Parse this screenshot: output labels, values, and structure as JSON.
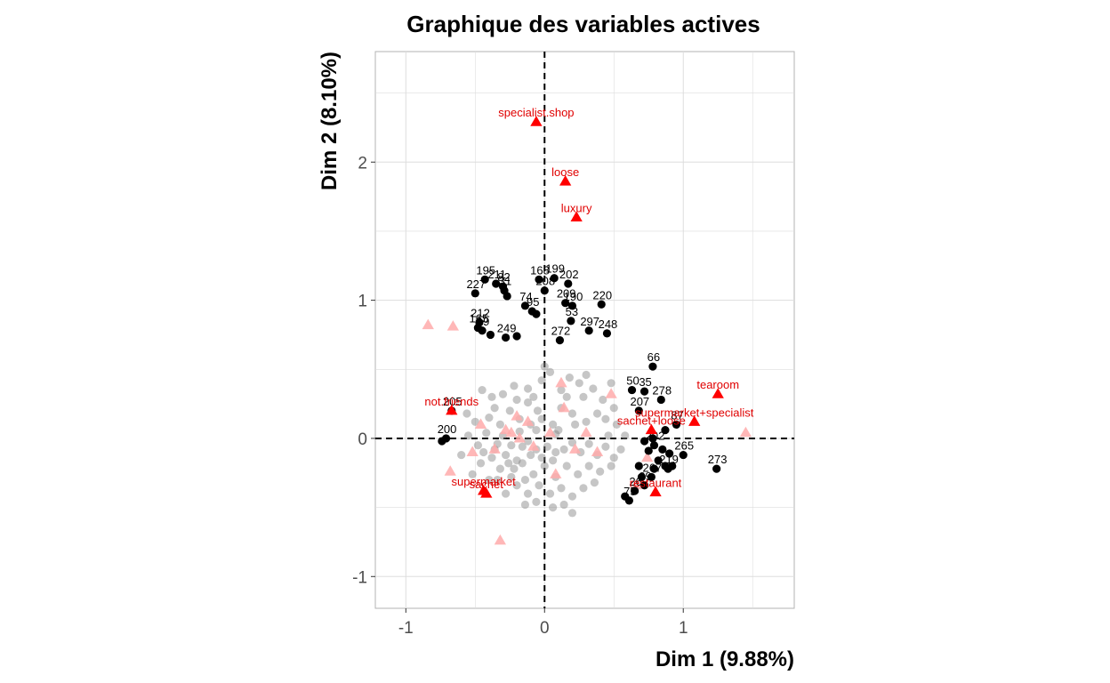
{
  "chart_data": {
    "type": "scatter",
    "title": "Graphique des variables actives",
    "xlabel": "Dim 1 (9.88%)",
    "ylabel": "Dim 2 (8.10%)",
    "xlim": [
      -1.22,
      1.8
    ],
    "ylim": [
      -1.23,
      2.8
    ],
    "x_ticks": [
      -1,
      0,
      1
    ],
    "y_ticks": [
      -1,
      0,
      1,
      2
    ],
    "x_tick_labels": [
      "-1",
      "0",
      "1"
    ],
    "y_tick_labels": [
      "-1",
      "0",
      "1",
      "2"
    ],
    "grid": true,
    "reference_lines": {
      "x": 0,
      "y": 0,
      "style": "dashed"
    },
    "colors": {
      "individuals_highlight": "#000000",
      "individuals_background": "#808080",
      "categories_highlight": "#ff0000",
      "categories_background": "#ffaaaa",
      "grid": "#dddddd",
      "panel_border": "#b3b3b3"
    },
    "series": [
      {
        "kind": "labeled-individuals",
        "marker": "circle",
        "points": [
          {
            "label": "195",
            "x": -0.43,
            "y": 1.15
          },
          {
            "label": "211",
            "x": -0.35,
            "y": 1.12
          },
          {
            "label": "82",
            "x": -0.3,
            "y": 1.1
          },
          {
            "label": "31",
            "x": -0.29,
            "y": 1.07
          },
          {
            "label": "227",
            "x": -0.5,
            "y": 1.05
          },
          {
            "label": "",
            "x": -0.27,
            "y": 1.03
          },
          {
            "label": "168",
            "x": -0.04,
            "y": 1.15
          },
          {
            "label": "199",
            "x": 0.07,
            "y": 1.16
          },
          {
            "label": "202",
            "x": 0.17,
            "y": 1.12
          },
          {
            "label": "208",
            "x": 0.0,
            "y": 1.07
          },
          {
            "label": "74",
            "x": -0.14,
            "y": 0.96
          },
          {
            "label": "95",
            "x": -0.09,
            "y": 0.92
          },
          {
            "label": "",
            "x": -0.06,
            "y": 0.9
          },
          {
            "label": "209",
            "x": 0.15,
            "y": 0.98
          },
          {
            "label": "190",
            "x": 0.2,
            "y": 0.96
          },
          {
            "label": "220",
            "x": 0.41,
            "y": 0.97
          },
          {
            "label": "53",
            "x": 0.19,
            "y": 0.85
          },
          {
            "label": "212",
            "x": -0.47,
            "y": 0.84
          },
          {
            "label": "165",
            "x": -0.48,
            "y": 0.8
          },
          {
            "label": "19",
            "x": -0.45,
            "y": 0.78
          },
          {
            "label": "",
            "x": -0.39,
            "y": 0.75
          },
          {
            "label": "249",
            "x": -0.28,
            "y": 0.73
          },
          {
            "label": "",
            "x": -0.2,
            "y": 0.74
          },
          {
            "label": "297",
            "x": 0.32,
            "y": 0.78
          },
          {
            "label": "248",
            "x": 0.45,
            "y": 0.76
          },
          {
            "label": "272",
            "x": 0.11,
            "y": 0.71
          },
          {
            "label": "66",
            "x": 0.78,
            "y": 0.52
          },
          {
            "label": "50",
            "x": 0.63,
            "y": 0.35
          },
          {
            "label": "35",
            "x": 0.72,
            "y": 0.34
          },
          {
            "label": "278",
            "x": 0.84,
            "y": 0.28
          },
          {
            "label": "207",
            "x": 0.68,
            "y": 0.2
          },
          {
            "label": "87",
            "x": 0.95,
            "y": 0.1
          },
          {
            "label": "",
            "x": 0.87,
            "y": 0.06
          },
          {
            "label": "205",
            "x": -0.67,
            "y": 0.2
          },
          {
            "label": "200",
            "x": -0.71,
            "y": 0.0
          },
          {
            "label": "",
            "x": -0.74,
            "y": -0.02
          },
          {
            "label": "",
            "x": 0.72,
            "y": -0.02
          },
          {
            "label": "",
            "x": 0.78,
            "y": 0.0
          },
          {
            "label": "202",
            "x": 0.79,
            "y": -0.05
          },
          {
            "label": "",
            "x": 0.85,
            "y": -0.08
          },
          {
            "label": "",
            "x": 0.9,
            "y": -0.11
          },
          {
            "label": "",
            "x": 0.75,
            "y": -0.09
          },
          {
            "label": "265",
            "x": 1.0,
            "y": -0.12
          },
          {
            "label": "",
            "x": 0.82,
            "y": -0.16
          },
          {
            "label": "",
            "x": 0.68,
            "y": -0.2
          },
          {
            "label": "",
            "x": 0.87,
            "y": -0.2
          },
          {
            "label": "",
            "x": 0.92,
            "y": -0.2
          },
          {
            "label": "219",
            "x": 0.89,
            "y": -0.22
          },
          {
            "label": "",
            "x": 0.79,
            "y": -0.22
          },
          {
            "label": "273",
            "x": 1.24,
            "y": -0.22
          },
          {
            "label": "",
            "x": 0.7,
            "y": -0.28
          },
          {
            "label": "267",
            "x": 0.77,
            "y": -0.28
          },
          {
            "label": "99",
            "x": 0.72,
            "y": -0.34
          },
          {
            "label": "26",
            "x": 0.65,
            "y": -0.38
          },
          {
            "label": "",
            "x": 0.58,
            "y": -0.42
          },
          {
            "label": "75",
            "x": 0.61,
            "y": -0.45
          }
        ]
      },
      {
        "kind": "individuals-background",
        "marker": "circle",
        "points": [
          {
            "x": -0.45,
            "y": 0.35
          },
          {
            "x": -0.38,
            "y": 0.3
          },
          {
            "x": -0.3,
            "y": 0.32
          },
          {
            "x": -0.22,
            "y": 0.38
          },
          {
            "x": -0.12,
            "y": 0.36
          },
          {
            "x": -0.02,
            "y": 0.42
          },
          {
            "x": 0.04,
            "y": 0.48
          },
          {
            "x": 0.12,
            "y": 0.35
          },
          {
            "x": 0.18,
            "y": 0.44
          },
          {
            "x": 0.25,
            "y": 0.4
          },
          {
            "x": 0.28,
            "y": 0.3
          },
          {
            "x": 0.35,
            "y": 0.36
          },
          {
            "x": 0.42,
            "y": 0.28
          },
          {
            "x": 0.48,
            "y": 0.4
          },
          {
            "x": 0.5,
            "y": 0.22
          },
          {
            "x": 0.38,
            "y": 0.18
          },
          {
            "x": 0.3,
            "y": 0.12
          },
          {
            "x": 0.2,
            "y": 0.18
          },
          {
            "x": 0.12,
            "y": 0.22
          },
          {
            "x": 0.06,
            "y": 0.1
          },
          {
            "x": -0.05,
            "y": 0.2
          },
          {
            "x": -0.12,
            "y": 0.26
          },
          {
            "x": -0.18,
            "y": 0.14
          },
          {
            "x": -0.25,
            "y": 0.2
          },
          {
            "x": -0.32,
            "y": 0.1
          },
          {
            "x": -0.4,
            "y": 0.15
          },
          {
            "x": -0.5,
            "y": 0.12
          },
          {
            "x": -0.55,
            "y": 0.02
          },
          {
            "x": -0.48,
            "y": -0.05
          },
          {
            "x": -0.42,
            "y": 0.04
          },
          {
            "x": -0.36,
            "y": -0.08
          },
          {
            "x": -0.3,
            "y": 0.02
          },
          {
            "x": -0.24,
            "y": -0.05
          },
          {
            "x": -0.18,
            "y": 0.05
          },
          {
            "x": -0.12,
            "y": -0.02
          },
          {
            "x": -0.06,
            "y": 0.06
          },
          {
            "x": 0.02,
            "y": -0.06
          },
          {
            "x": 0.08,
            "y": 0.03
          },
          {
            "x": 0.14,
            "y": -0.08
          },
          {
            "x": 0.2,
            "y": -0.03
          },
          {
            "x": 0.26,
            "y": -0.1
          },
          {
            "x": 0.32,
            "y": -0.04
          },
          {
            "x": 0.38,
            "y": -0.12
          },
          {
            "x": 0.44,
            "y": -0.06
          },
          {
            "x": 0.5,
            "y": -0.14
          },
          {
            "x": 0.55,
            "y": -0.08
          },
          {
            "x": 0.48,
            "y": -0.2
          },
          {
            "x": 0.4,
            "y": -0.24
          },
          {
            "x": 0.32,
            "y": -0.2
          },
          {
            "x": 0.24,
            "y": -0.26
          },
          {
            "x": 0.16,
            "y": -0.2
          },
          {
            "x": 0.08,
            "y": -0.28
          },
          {
            "x": 0.0,
            "y": -0.2
          },
          {
            "x": -0.08,
            "y": -0.26
          },
          {
            "x": -0.16,
            "y": -0.18
          },
          {
            "x": -0.24,
            "y": -0.28
          },
          {
            "x": -0.32,
            "y": -0.22
          },
          {
            "x": -0.4,
            "y": -0.3
          },
          {
            "x": -0.46,
            "y": -0.18
          },
          {
            "x": -0.52,
            "y": -0.26
          },
          {
            "x": -0.38,
            "y": -0.14
          },
          {
            "x": -0.28,
            "y": -0.12
          },
          {
            "x": -0.2,
            "y": -0.16
          },
          {
            "x": -0.1,
            "y": -0.12
          },
          {
            "x": -0.02,
            "y": -0.14
          },
          {
            "x": 0.06,
            "y": -0.16
          },
          {
            "x": 0.12,
            "y": -0.36
          },
          {
            "x": 0.04,
            "y": -0.4
          },
          {
            "x": -0.04,
            "y": -0.34
          },
          {
            "x": -0.12,
            "y": -0.4
          },
          {
            "x": -0.2,
            "y": -0.34
          },
          {
            "x": -0.28,
            "y": -0.4
          },
          {
            "x": 0.2,
            "y": -0.42
          },
          {
            "x": 0.28,
            "y": -0.36
          },
          {
            "x": 0.36,
            "y": -0.32
          },
          {
            "x": 0.2,
            "y": -0.54
          },
          {
            "x": 0.06,
            "y": -0.5
          },
          {
            "x": -0.06,
            "y": -0.46
          },
          {
            "x": 0.14,
            "y": -0.48
          },
          {
            "x": -0.14,
            "y": -0.48
          },
          {
            "x": 0.22,
            "y": 0.1
          },
          {
            "x": 0.1,
            "y": 0.06
          },
          {
            "x": -0.02,
            "y": 0.14
          },
          {
            "x": -0.1,
            "y": 0.1
          },
          {
            "x": -0.16,
            "y": -0.06
          },
          {
            "x": -0.22,
            "y": -0.22
          },
          {
            "x": -0.34,
            "y": -0.3
          },
          {
            "x": -0.44,
            "y": -0.1
          },
          {
            "x": -0.26,
            "y": -0.18
          },
          {
            "x": -0.06,
            "y": -0.08
          },
          {
            "x": 0.0,
            "y": 0.52
          },
          {
            "x": -0.08,
            "y": 0.3
          },
          {
            "x": 0.16,
            "y": 0.3
          },
          {
            "x": 0.3,
            "y": 0.46
          },
          {
            "x": 0.44,
            "y": 0.14
          },
          {
            "x": -0.6,
            "y": -0.12
          },
          {
            "x": -0.56,
            "y": 0.18
          },
          {
            "x": 0.58,
            "y": 0.02
          },
          {
            "x": 0.52,
            "y": 0.1
          },
          {
            "x": 0.46,
            "y": 0.02
          },
          {
            "x": -0.36,
            "y": 0.22
          },
          {
            "x": -0.2,
            "y": 0.28
          },
          {
            "x": 0.08,
            "y": -0.1
          },
          {
            "x": -0.14,
            "y": -0.3
          },
          {
            "x": -0.34,
            "y": -0.04
          }
        ]
      },
      {
        "kind": "categories",
        "marker": "triangle",
        "points": [
          {
            "label": "specialist.shop",
            "x": -0.06,
            "y": 2.29
          },
          {
            "label": "loose",
            "x": 0.15,
            "y": 1.86
          },
          {
            "label": "luxury",
            "x": 0.23,
            "y": 1.6
          },
          {
            "label": "tearoom",
            "x": 1.25,
            "y": 0.32
          },
          {
            "label": "supermarket+specialist",
            "x": 1.08,
            "y": 0.12
          },
          {
            "label": "sachet+loose",
            "x": 0.77,
            "y": 0.06
          },
          {
            "label": "not.friends",
            "x": -0.67,
            "y": 0.2
          },
          {
            "label": "restaurant",
            "x": 0.8,
            "y": -0.39
          },
          {
            "label": "supermarket",
            "x": -0.44,
            "y": -0.38
          },
          {
            "label": "sachet",
            "x": -0.42,
            "y": -0.4
          }
        ]
      },
      {
        "kind": "categories-background",
        "marker": "triangle",
        "points": [
          {
            "x": -0.84,
            "y": 0.82
          },
          {
            "x": -0.66,
            "y": 0.81
          },
          {
            "x": 1.45,
            "y": 0.04
          },
          {
            "x": -0.32,
            "y": -0.74
          },
          {
            "x": -0.68,
            "y": -0.24
          },
          {
            "x": 0.48,
            "y": 0.32
          },
          {
            "x": 0.12,
            "y": 0.4
          },
          {
            "x": 0.14,
            "y": 0.22
          },
          {
            "x": -0.2,
            "y": 0.16
          },
          {
            "x": -0.12,
            "y": 0.12
          },
          {
            "x": 0.3,
            "y": 0.04
          },
          {
            "x": -0.28,
            "y": 0.06
          },
          {
            "x": -0.18,
            "y": 0.0
          },
          {
            "x": 0.04,
            "y": 0.04
          },
          {
            "x": -0.08,
            "y": -0.06
          },
          {
            "x": 0.22,
            "y": -0.08
          },
          {
            "x": 0.38,
            "y": -0.1
          },
          {
            "x": -0.36,
            "y": -0.08
          },
          {
            "x": 0.08,
            "y": -0.26
          },
          {
            "x": -0.52,
            "y": -0.1
          },
          {
            "x": -0.46,
            "y": 0.1
          },
          {
            "x": 0.74,
            "y": -0.14
          },
          {
            "x": 0.66,
            "y": -0.34
          },
          {
            "x": -0.24,
            "y": 0.04
          }
        ]
      }
    ]
  }
}
